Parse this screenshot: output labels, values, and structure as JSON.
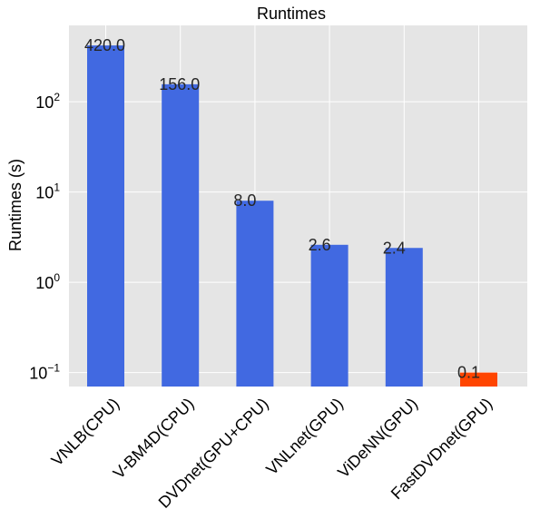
{
  "chart_data": {
    "type": "bar",
    "title": "Runtimes",
    "xlabel": "",
    "ylabel": "Runtimes (s)",
    "yscale": "log",
    "ylim": [
      0.07,
      700
    ],
    "grid": true,
    "categories": [
      "VNLB(CPU)",
      "V-BM4D(CPU)",
      "DVDnet(GPU+CPU)",
      "VNLnet(GPU)",
      "ViDeNN(GPU)",
      "FastDVDnet(GPU)"
    ],
    "values": [
      420.0,
      156.0,
      8.0,
      2.6,
      2.4,
      0.1
    ],
    "value_labels": [
      "420.0",
      "156.0",
      "8.0",
      "2.6",
      "2.4",
      "0.1"
    ],
    "bar_colors": [
      "#4169e1",
      "#4169e1",
      "#4169e1",
      "#4169e1",
      "#4169e1",
      "#ff4500"
    ],
    "yticks": [
      {
        "value": 0.1,
        "base": "10",
        "exp": "−1"
      },
      {
        "value": 1,
        "base": "10",
        "exp": "0"
      },
      {
        "value": 10,
        "base": "10",
        "exp": "1"
      },
      {
        "value": 100,
        "base": "10",
        "exp": "2"
      }
    ],
    "colors": {
      "plot_background": "#e5e5e5",
      "grid": "#ffffff",
      "text": "#000000"
    }
  }
}
